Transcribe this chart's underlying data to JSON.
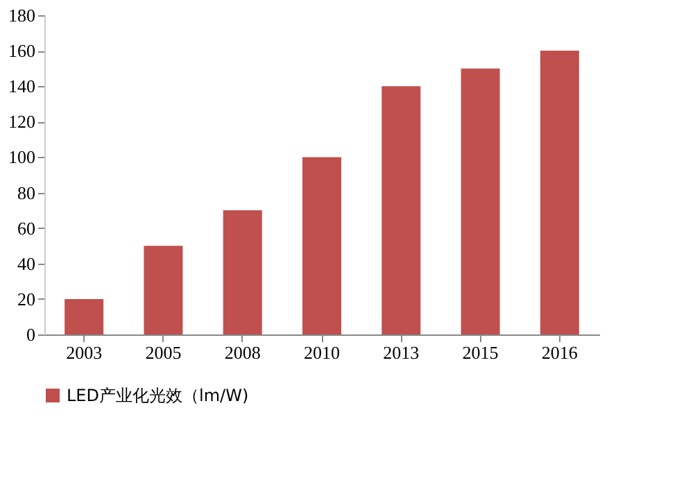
{
  "chart_data": {
    "type": "bar",
    "categories": [
      "2003",
      "2005",
      "2008",
      "2010",
      "2013",
      "2015",
      "2016"
    ],
    "series": [
      {
        "name": "LED产业化光效（lm/W)",
        "color": "#c0504d",
        "values": [
          20,
          50,
          70,
          100,
          140,
          150,
          160
        ]
      }
    ],
    "ylim": [
      0,
      180
    ],
    "yticks": [
      0,
      20,
      40,
      60,
      80,
      100,
      120,
      140,
      160,
      180
    ],
    "grid": false,
    "legend": "bottom"
  }
}
